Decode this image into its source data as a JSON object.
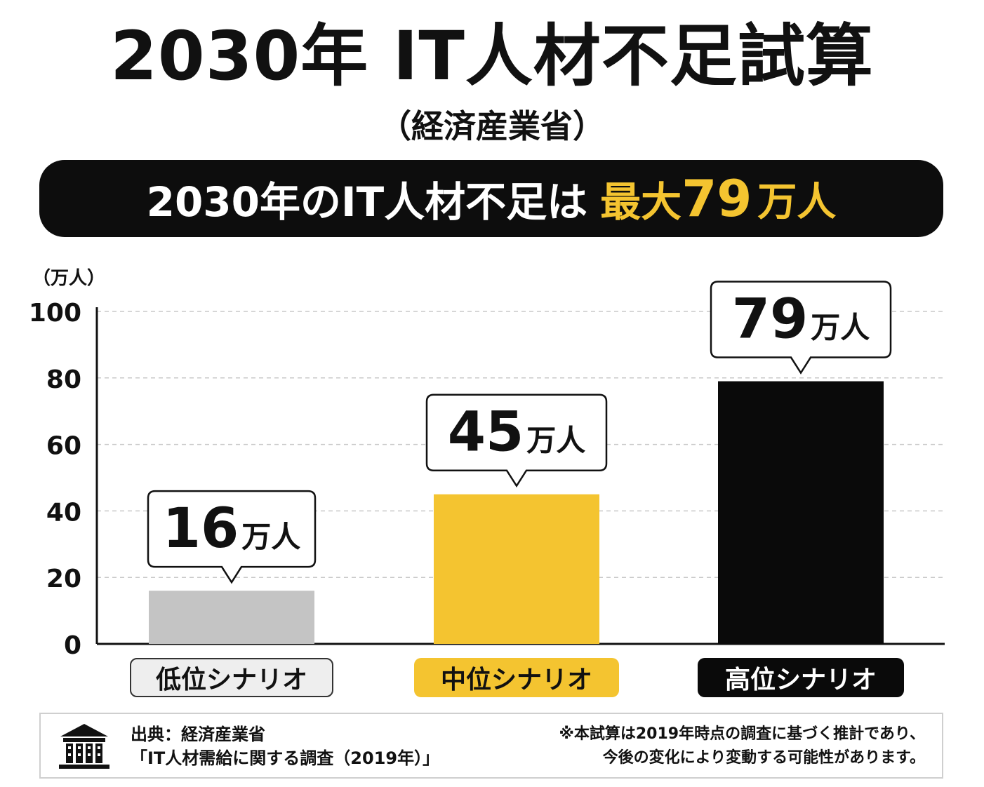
{
  "header": {
    "title": "2030年 IT人材不足試算",
    "subtitle": "（経済産業省）"
  },
  "banner": {
    "prefix": "2030年のIT人材不足は",
    "highlight_word": "最大",
    "highlight_number": "79",
    "highlight_unit": "万人"
  },
  "chart_data": {
    "type": "bar",
    "ylabel": "（万人）",
    "ylim": [
      0,
      100
    ],
    "yticks": [
      "0",
      "20",
      "40",
      "60",
      "80",
      "100"
    ],
    "categories": [
      "低位シナリオ",
      "中位シナリオ",
      "高位シナリオ"
    ],
    "values": [
      16,
      45,
      79
    ],
    "callout_numbers": [
      "16",
      "45",
      "79"
    ],
    "callout_unit": "万人",
    "colors": [
      "#c4c4c4",
      "#f4c430",
      "#0a0a0a"
    ],
    "grid": true
  },
  "source": {
    "line1": "出典：経済産業省",
    "line2": "「IT人材需給に関する調査（2019年）」",
    "note1": "※本試算は2019年時点の調査に基づく推計であり、",
    "note2": "今後の変化により変動する可能性があります。",
    "icon": "building-icon"
  }
}
